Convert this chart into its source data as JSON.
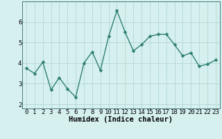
{
  "x": [
    0,
    1,
    2,
    3,
    4,
    5,
    6,
    7,
    8,
    9,
    10,
    11,
    12,
    13,
    14,
    15,
    16,
    17,
    18,
    19,
    20,
    21,
    22,
    23
  ],
  "y": [
    3.75,
    3.5,
    4.05,
    2.7,
    3.3,
    2.75,
    2.35,
    4.0,
    4.55,
    3.65,
    5.3,
    6.55,
    5.5,
    4.6,
    4.9,
    5.3,
    5.4,
    5.4,
    4.9,
    4.35,
    4.5,
    3.85,
    3.95,
    4.15
  ],
  "line_color": "#2d7f70",
  "marker": "D",
  "marker_size": 2.5,
  "line_width": 1.0,
  "bg_color": "#d6f0f0",
  "grid_color": "#b0d8d0",
  "xlabel": "Humidex (Indice chaleur)",
  "xlabel_fontsize": 7.5,
  "xtick_labels": [
    "0",
    "1",
    "2",
    "3",
    "4",
    "5",
    "6",
    "7",
    "8",
    "9",
    "10",
    "11",
    "12",
    "13",
    "14",
    "15",
    "16",
    "17",
    "18",
    "19",
    "20",
    "21",
    "22",
    "23"
  ],
  "ytick_values": [
    2,
    3,
    4,
    5,
    6
  ],
  "ylim": [
    1.8,
    7.0
  ],
  "xlim": [
    -0.5,
    23.5
  ],
  "tick_fontsize": 6.5
}
